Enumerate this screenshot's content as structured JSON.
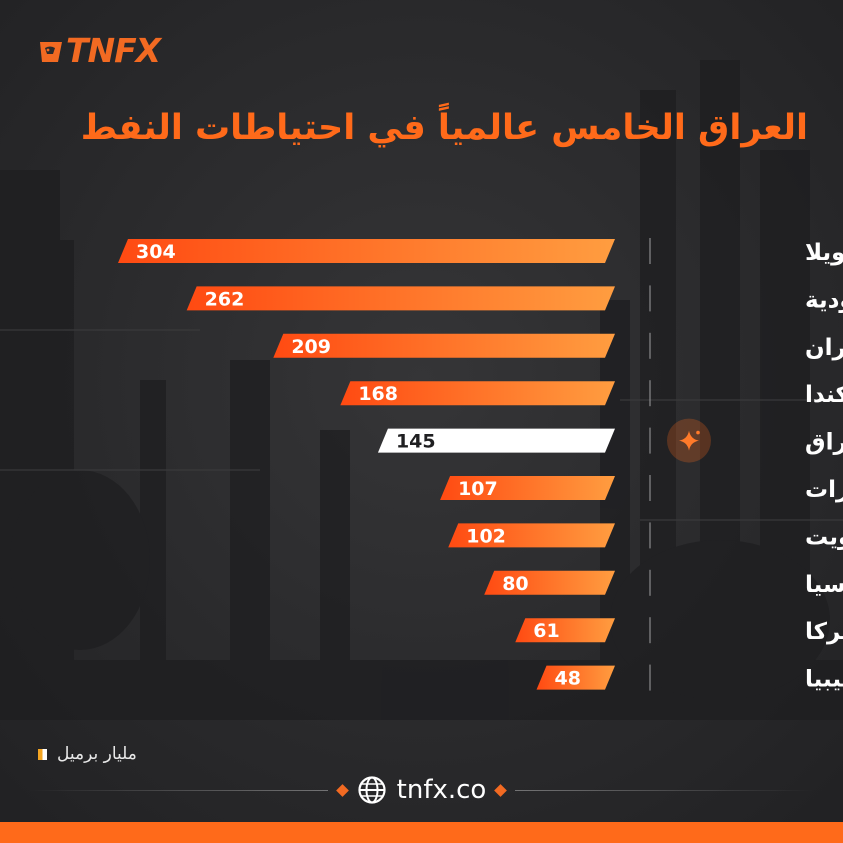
{
  "brand": {
    "logo_text": "TNFX",
    "accent": "#ff6a1a"
  },
  "title": "العراق الخامس عالمياً في احتياطات النفط",
  "chart_data": {
    "type": "bar",
    "orientation": "horizontal",
    "categories": [
      "فنزويلا",
      "السعودية",
      "إيران",
      "كندا",
      "العراق",
      "الإمارات",
      "الكويت",
      "روسيا",
      "أميركا",
      "ليبيا"
    ],
    "values": [
      304,
      262,
      209,
      168,
      145,
      107,
      102,
      80,
      61,
      48
    ],
    "highlight": "العراق",
    "highlight_color": "#ffffff",
    "bar_gradient": [
      "#ff4e14",
      "#ff9a3c"
    ],
    "unit": "مليار برميل",
    "title": "العراق الخامس عالمياً في احتياطات النفط",
    "xlabel": "",
    "ylabel": "",
    "xlim": [
      0,
      304
    ],
    "grid": false,
    "legend": "bottom-left"
  },
  "footer": {
    "website": "tnfx.co",
    "icon": "globe-icon"
  },
  "highlight_icon": "sparkle-icon"
}
